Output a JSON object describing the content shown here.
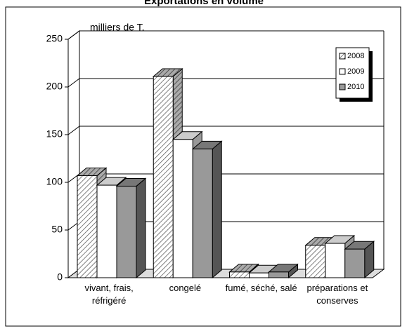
{
  "chart_data": {
    "type": "bar3d",
    "title": "Exportations en volume",
    "y_label": "milliers de T.",
    "categories": [
      "vivant, frais, réfrigéré",
      "congelé",
      "fumé, séché, salé",
      "préparations et conserves"
    ],
    "series": [
      {
        "name": "2008",
        "color": "#ffffff",
        "pattern": "diagonal-hatch",
        "values": [
          107,
          211,
          6,
          34
        ]
      },
      {
        "name": "2009",
        "color": "#ffffff",
        "values": [
          97,
          145,
          5,
          36
        ]
      },
      {
        "name": "2010",
        "color": "#999999",
        "values": [
          96,
          135,
          6,
          30
        ]
      }
    ],
    "ylim": [
      0,
      250
    ],
    "yticks": [
      0,
      50,
      100,
      150,
      200,
      250
    ],
    "grid": true,
    "legend": "top-right"
  }
}
